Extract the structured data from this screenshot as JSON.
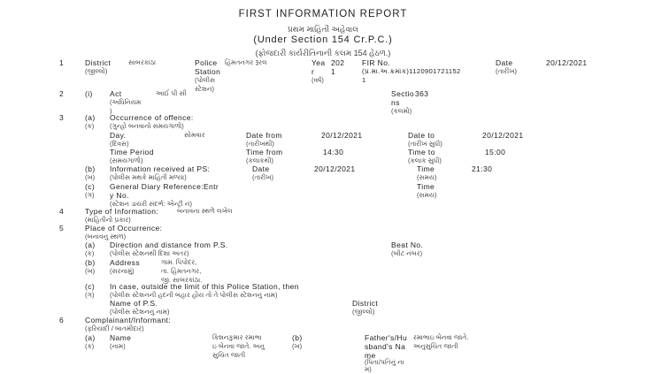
{
  "header": {
    "title": "FIRST INFORMATION REPORT",
    "title_gu": "પ્રથમ માહિતી અહેવાલ",
    "section": "(Under Section 154 Cr.P.C.)",
    "section_gu": "(ફોજદારી કાર્યરીતિનાની કલમ 154 હેઠળ.)"
  },
  "r1": {
    "num": "1",
    "district": "District",
    "district_gu": "(જીલ્લો)",
    "district_val": "સાબરકાંઠા",
    "ps": "Police",
    "ps2": "Station",
    "ps_gu": "(પોલીસ",
    "ps_gu2": "સ્ટેશન)",
    "ps_val": "હિંમતનગર રૂરલ",
    "year": "Yea",
    "year2": "r",
    "year_gu": "(વર્ષ)",
    "year_val": "202",
    "year_val2": "1",
    "fir": "FIR No.",
    "fir_val": "(પ્ર.મા.અ.ક્રમાંક)1120901721152",
    "fir_val2": "1",
    "date": "Date",
    "date_gu": "(તારીખ)",
    "date_val": "20/12/2021"
  },
  "r2": {
    "num": "2",
    "sub": "(i)",
    "act": "Act",
    "act_gu": "(અધિનિયમ",
    "act_gu2": ")",
    "act_val": "આઈ પી સી",
    "sec": "Sectio",
    "sec2": "ns",
    "sec_gu": "(કલમો)",
    "sec_val": "363"
  },
  "r3": {
    "num": "3",
    "a": "(a)",
    "a_gu": "(ક)",
    "occ": "Occurrence of offence:",
    "occ_gu": "(ગુન્હો બનવાનો સમયગાળો)",
    "day": "Day.",
    "day_gu": "(દિવસ)",
    "day_val": "સોમવાર",
    "date_from": "Date from",
    "date_from_gu": "(તારીખથી)",
    "date_from_val": "20/12/2021",
    "date_to": "Date to",
    "date_to_gu": "(તારીખ સુધી)",
    "date_to_val": "20/12/2021",
    "period": "Time Period",
    "period_gu": "(સમયગાળો)",
    "time_from": "Time from",
    "time_from_gu": "(કલાકથી)",
    "time_from_val": "14:30",
    "time_to": "Time to",
    "time_to_gu": "(કલાક સુધી)",
    "time_to_val": "15:00",
    "b": "(b)",
    "b_gu": "(ખ)",
    "info": "Information received at PS:",
    "info_gu": "(પોલીસ મથકે માહિતી મળ્યા)",
    "info_date": "Date",
    "info_date_gu": "(તારીખ)",
    "info_date_val": "20/12/2021",
    "info_time": "Time",
    "info_time_gu": "(સમય)",
    "info_time_val": "21:30",
    "c": "(c)",
    "c_gu": "(ગ)",
    "gd": "General Diary Reference:Entr",
    "gd2": "y No.",
    "gd_gu": "(સ્ટેશન ડાયરી સંદર્ભ: એન્ટ્રી નં)",
    "gd_time": "Time",
    "gd_time_gu": "(સમય)"
  },
  "r4": {
    "num": "4",
    "label": "Type of Information:",
    "label_gu": "(માહિતીનો પ્રકાર)",
    "val": "બનાવના સ્થળે લખેલ"
  },
  "r5": {
    "num": "5",
    "label": "Place of Occurrence:",
    "label_gu": "(બનાવનું સ્થળ)",
    "a": "(a)",
    "a_gu": "(ક)",
    "dir": "Direction and distance from P.S.",
    "dir_gu": "(પોલીસ સ્ટેશનથી દિશા અંતર)",
    "beat": "Beat No.",
    "beat_gu": "(બીટ નંબર)",
    "b": "(b)",
    "b_gu": "(ખ)",
    "addr": "Address",
    "addr_gu": "(સરનામું)",
    "addr_val": [
      "ગામ. પિપોદર,",
      "તા. હિંમતનગર,",
      "જી. સાબરકાંઠા."
    ],
    "c": "(c)",
    "c_gu": "(ગ)",
    "outside": "In case, outside the limit of this Police Station, then",
    "outside_gu": "(પોલીસ સ્ટેશનની હદની બહાર હોય તો તે પોલીસ સ્ટેશનનું નામ)",
    "ps_name": "Name of P.S.",
    "ps_name_gu": "(પોલીસ સ્ટેશનનું નામ)",
    "district": "District",
    "district_gu": "(જીલ્લો)"
  },
  "r6": {
    "num": "6",
    "label": "Complainant/Informant:",
    "label_gu": "(ફરિયાદી / બાતમીદાર)",
    "a": "(a)",
    "a_gu": "(ક)",
    "name": "Name",
    "name_gu": "(નામ)",
    "name_val": [
      "કિશનકુમાર રમાભા",
      "ઇ બેનવા જાતે. અનુ",
      "સુચિત જાતી"
    ],
    "b": "(b)",
    "b_gu": "(ખ)",
    "father": [
      "Father's/Hu",
      "sband's Na",
      "me"
    ],
    "father_gu": [
      "(પિતા/પતિનું ના",
      "મ)"
    ],
    "father_val": [
      "રમાભાઇ બેનવા જાતે.",
      "અનુસુચિત જાતી"
    ]
  }
}
